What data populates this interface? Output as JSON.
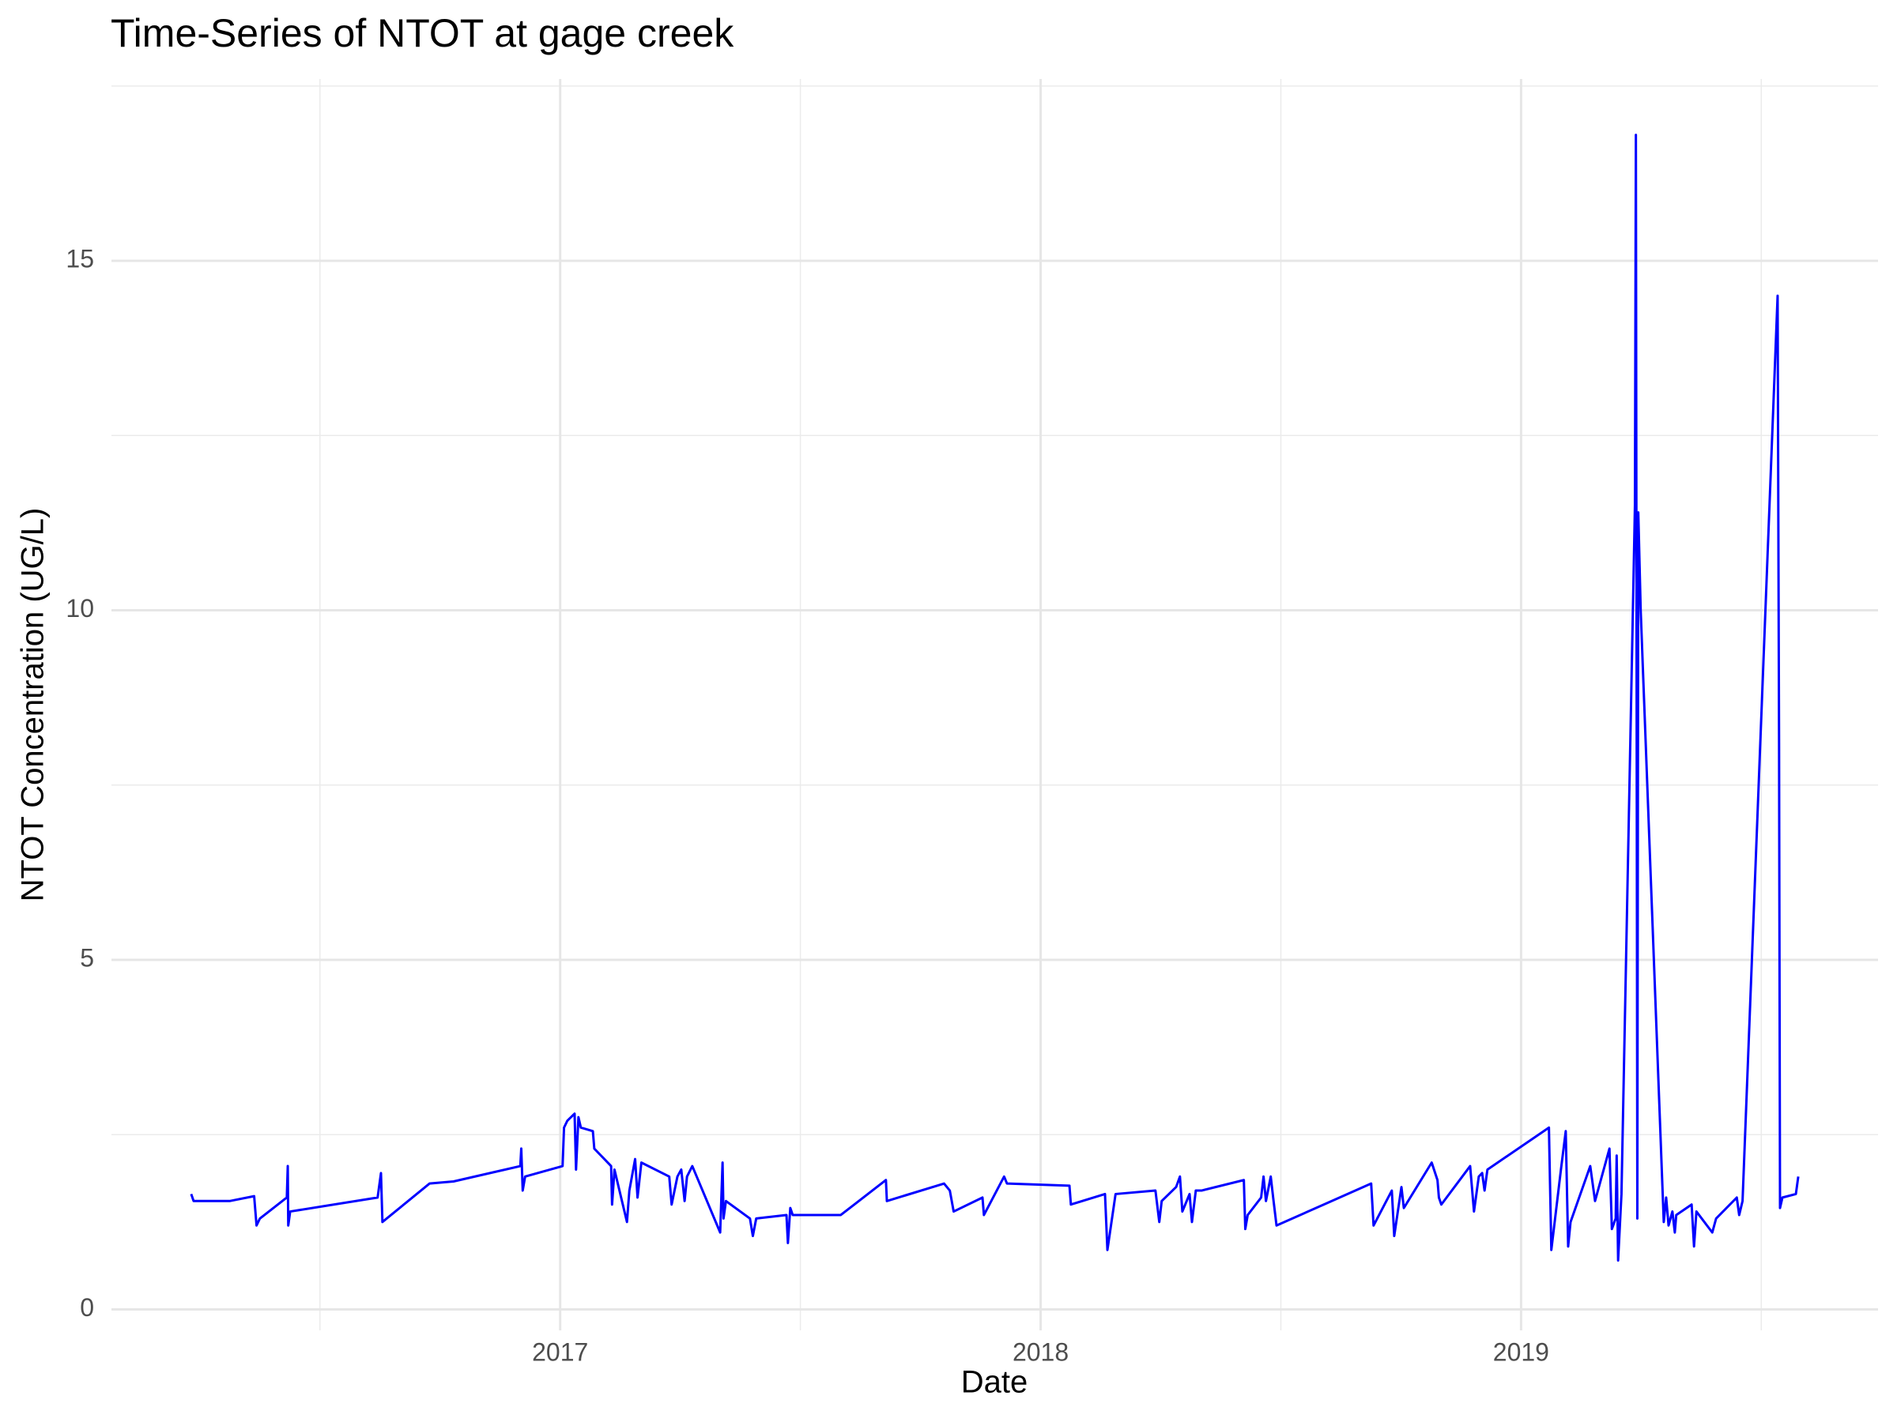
{
  "chart_data": {
    "type": "line",
    "title": "Time-Series of NTOT at gage creek",
    "x_label": "Date",
    "y_label": "NTOT Concentration (UG/L)",
    "xlim": [
      2016.066,
      2019.743
    ],
    "ylim": [
      -0.3,
      17.6
    ],
    "xticks": [
      2017,
      2018,
      2019
    ],
    "yticks": [
      0,
      5,
      10,
      15
    ],
    "x_minor_grid": [
      2016.5,
      2017.5,
      2018.5,
      2019.5
    ],
    "y_minor_grid": [
      2.5,
      7.5,
      12.5,
      17.5
    ],
    "grid": true,
    "x": [
      2016.232,
      2016.237,
      2016.312,
      2016.363,
      2016.368,
      2016.375,
      2016.431,
      2016.433,
      2016.434,
      2016.438,
      2016.62,
      2016.627,
      2016.63,
      2016.728,
      2016.778,
      2016.917,
      2016.919,
      2016.922,
      2016.927,
      2017.005,
      2017.008,
      2017.015,
      2017.03,
      2017.033,
      2017.038,
      2017.043,
      2017.068,
      2017.071,
      2017.106,
      2017.108,
      2017.113,
      2017.139,
      2017.144,
      2017.156,
      2017.161,
      2017.169,
      2017.227,
      2017.232,
      2017.244,
      2017.252,
      2017.259,
      2017.264,
      2017.275,
      2017.333,
      2017.338,
      2017.34,
      2017.345,
      2017.395,
      2017.401,
      2017.408,
      2017.471,
      2017.474,
      2017.479,
      2017.484,
      2017.584,
      2017.678,
      2017.68,
      2017.799,
      2017.811,
      2017.819,
      2017.879,
      2017.882,
      2017.924,
      2017.93,
      2018.06,
      2018.063,
      2018.134,
      2018.139,
      2018.156,
      2018.239,
      2018.247,
      2018.252,
      2018.282,
      2018.29,
      2018.295,
      2018.31,
      2018.315,
      2018.323,
      2018.335,
      2018.423,
      2018.426,
      2018.431,
      2018.459,
      2018.464,
      2018.469,
      2018.479,
      2018.484,
      2018.491,
      2018.688,
      2018.693,
      2018.731,
      2018.736,
      2018.751,
      2018.756,
      2018.814,
      2018.826,
      2018.829,
      2018.834,
      2018.894,
      2018.902,
      2018.912,
      2018.919,
      2018.924,
      2018.93,
      2019.058,
      2019.063,
      2019.083,
      2019.093,
      2019.098,
      2019.103,
      2019.144,
      2019.154,
      2019.184,
      2019.189,
      2019.197,
      2019.199,
      2019.202,
      2019.209,
      2019.237,
      2019.239,
      2019.242,
      2019.244,
      2019.249,
      2019.297,
      2019.302,
      2019.307,
      2019.315,
      2019.32,
      2019.323,
      2019.355,
      2019.36,
      2019.365,
      2019.398,
      2019.406,
      2019.449,
      2019.454,
      2019.461,
      2019.534,
      2019.537,
      2019.539,
      2019.544,
      2019.572,
      2019.577
    ],
    "series": [
      {
        "color": "#0000ff",
        "values": [
          1.65,
          1.55,
          1.55,
          1.62,
          1.2,
          1.3,
          1.6,
          2.05,
          1.2,
          1.4,
          1.6,
          1.95,
          1.25,
          1.8,
          1.83,
          2.05,
          2.3,
          1.7,
          1.9,
          2.05,
          2.6,
          2.7,
          2.8,
          2.0,
          2.75,
          2.6,
          2.55,
          2.3,
          2.05,
          1.5,
          2.0,
          1.25,
          1.7,
          2.15,
          1.6,
          2.1,
          1.9,
          1.5,
          1.9,
          2.0,
          1.55,
          1.9,
          2.05,
          1.1,
          2.1,
          1.3,
          1.55,
          1.3,
          1.05,
          1.3,
          1.35,
          0.95,
          1.45,
          1.35,
          1.35,
          1.85,
          1.55,
          1.8,
          1.7,
          1.4,
          1.6,
          1.35,
          1.9,
          1.8,
          1.77,
          1.5,
          1.65,
          0.85,
          1.65,
          1.7,
          1.25,
          1.55,
          1.75,
          1.9,
          1.4,
          1.65,
          1.25,
          1.7,
          1.7,
          1.85,
          1.15,
          1.35,
          1.6,
          1.9,
          1.55,
          1.9,
          1.6,
          1.2,
          1.8,
          1.2,
          1.7,
          1.05,
          1.75,
          1.45,
          2.1,
          1.85,
          1.6,
          1.5,
          2.05,
          1.4,
          1.9,
          1.95,
          1.7,
          2.0,
          2.6,
          0.85,
          2.0,
          2.55,
          0.9,
          1.25,
          2.05,
          1.55,
          2.3,
          1.15,
          1.3,
          2.2,
          0.7,
          1.65,
          11.5,
          16.8,
          1.3,
          11.4,
          10.0,
          1.25,
          1.6,
          1.2,
          1.4,
          1.1,
          1.35,
          1.5,
          0.9,
          1.4,
          1.1,
          1.3,
          1.6,
          1.35,
          1.55,
          14.5,
          8.1,
          1.45,
          1.6,
          1.65,
          1.9
        ]
      }
    ]
  }
}
